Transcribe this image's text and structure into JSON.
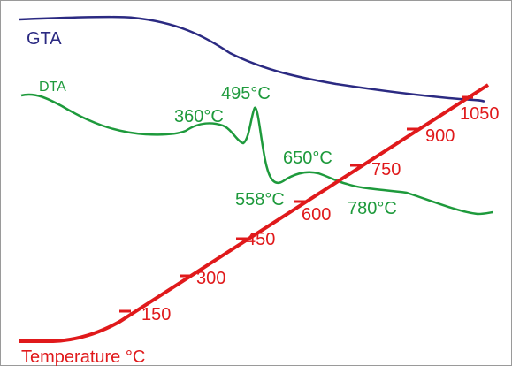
{
  "colors": {
    "gta": "#2b2a82",
    "dta": "#1e9a3c",
    "temperature": "#e0191b",
    "frame": "#9a9a9a"
  },
  "chart_data": {
    "type": "line",
    "title": "",
    "xlabel": "",
    "ylabel": "",
    "grid": false,
    "series": [
      {
        "name": "GTA"
      },
      {
        "name": "DTA"
      },
      {
        "name": "Temperature °C"
      }
    ],
    "dta_peaks": [
      "360°C",
      "495°C",
      "558°C",
      "650°C",
      "780°C"
    ],
    "temperature_ticks": [
      "150",
      "300",
      "450",
      "600",
      "750",
      "900",
      "1050"
    ]
  }
}
